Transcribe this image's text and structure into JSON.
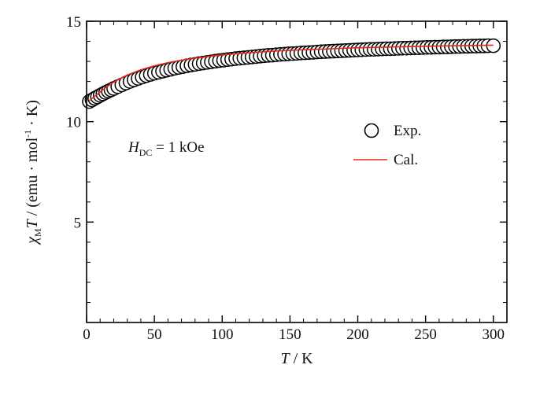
{
  "chart_data": {
    "type": "scatter",
    "x_label": {
      "symbol": "T",
      "text": " / K"
    },
    "y_label": {
      "chi": "χ",
      "chi_sub": "M",
      "T": "T",
      "unit_open": " / (emu · mol",
      "unit_exp": "-1",
      "unit_close": " · K)"
    },
    "xlim": [
      0,
      310
    ],
    "ylim": [
      0,
      15
    ],
    "x_ticks": [
      0,
      50,
      100,
      150,
      200,
      250,
      300
    ],
    "y_ticks": [
      5,
      10,
      15
    ],
    "grid": false,
    "legend_position": "right",
    "annotation": {
      "H": "H",
      "sub": "DC",
      "text": " = 1 kOe"
    },
    "series": [
      {
        "name": "Exp.",
        "kind": "markers",
        "marker": "open-circle",
        "color": "#000000",
        "x": [
          2,
          4,
          6,
          8,
          10,
          12,
          14,
          16,
          18,
          20,
          23,
          26,
          29,
          32,
          35,
          38,
          41,
          44,
          47,
          50,
          53,
          56,
          59,
          62,
          65,
          68,
          71,
          74,
          77,
          80,
          83,
          86,
          89,
          92,
          95,
          98,
          101,
          104,
          107,
          110,
          113,
          116,
          119,
          122,
          125,
          128,
          131,
          134,
          137,
          140,
          143,
          146,
          149,
          152,
          155,
          158,
          161,
          164,
          167,
          170,
          173,
          176,
          179,
          182,
          185,
          188,
          191,
          194,
          197,
          200,
          203,
          206,
          209,
          212,
          215,
          218,
          221,
          224,
          227,
          230,
          233,
          236,
          239,
          242,
          245,
          248,
          251,
          254,
          257,
          260,
          263,
          266,
          269,
          272,
          275,
          278,
          281,
          284,
          287,
          290,
          293,
          296,
          300
        ],
        "y": [
          11.0,
          11.08,
          11.16,
          11.23,
          11.31,
          11.38,
          11.45,
          11.52,
          11.58,
          11.65,
          11.74,
          11.83,
          11.92,
          12.0,
          12.08,
          12.15,
          12.22,
          12.29,
          12.35,
          12.41,
          12.46,
          12.51,
          12.56,
          12.61,
          12.66,
          12.7,
          12.74,
          12.78,
          12.82,
          12.85,
          12.89,
          12.92,
          12.95,
          12.98,
          13.01,
          13.04,
          13.06,
          13.09,
          13.11,
          13.14,
          13.16,
          13.18,
          13.2,
          13.22,
          13.24,
          13.26,
          13.28,
          13.3,
          13.31,
          13.33,
          13.35,
          13.36,
          13.38,
          13.39,
          13.4,
          13.42,
          13.43,
          13.44,
          13.45,
          13.47,
          13.48,
          13.49,
          13.5,
          13.51,
          13.52,
          13.53,
          13.54,
          13.55,
          13.56,
          13.57,
          13.58,
          13.59,
          13.6,
          13.6,
          13.61,
          13.62,
          13.63,
          13.63,
          13.64,
          13.65,
          13.66,
          13.66,
          13.67,
          13.68,
          13.68,
          13.69,
          13.7,
          13.7,
          13.71,
          13.71,
          13.72,
          13.72,
          13.73,
          13.74,
          13.74,
          13.75,
          13.75,
          13.76,
          13.76,
          13.77,
          13.77,
          13.78,
          13.78
        ]
      },
      {
        "name": "Cal.",
        "kind": "line",
        "color": "#e8281e",
        "x": [
          2,
          5,
          10,
          15,
          20,
          25,
          30,
          40,
          50,
          60,
          70,
          80,
          90,
          100,
          120,
          140,
          160,
          180,
          200,
          220,
          240,
          260,
          280,
          300
        ],
        "y": [
          11.05,
          11.2,
          11.48,
          11.74,
          11.96,
          12.15,
          12.32,
          12.58,
          12.78,
          12.94,
          13.06,
          13.16,
          13.25,
          13.32,
          13.43,
          13.52,
          13.58,
          13.63,
          13.68,
          13.71,
          13.74,
          13.77,
          13.79,
          13.81
        ]
      }
    ]
  }
}
